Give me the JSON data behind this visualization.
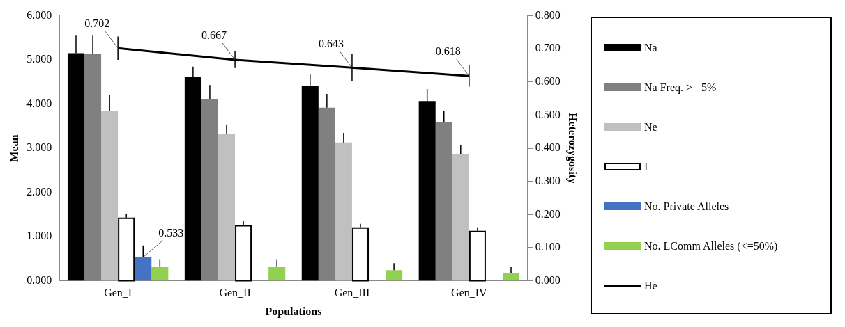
{
  "chart_data": {
    "type": "bar",
    "xlabel": "Populations",
    "ylabel": "Mean",
    "y2label": "Heterozygosity",
    "categories": [
      "Gen_I",
      "Gen_II",
      "Gen_III",
      "Gen_IV"
    ],
    "ylim": [
      0,
      6
    ],
    "yticks": [
      {
        "value": 0,
        "label": "0.000"
      },
      {
        "value": 1,
        "label": "1.000"
      },
      {
        "value": 2,
        "label": "2.000"
      },
      {
        "value": 3,
        "label": "3.000"
      },
      {
        "value": 4,
        "label": "4.000"
      },
      {
        "value": 5,
        "label": "5.000"
      },
      {
        "value": 6,
        "label": "6.000"
      }
    ],
    "y2lim": [
      0,
      0.8
    ],
    "y2ticks": [
      {
        "value": 0,
        "label": "0.000"
      },
      {
        "value": 0.1,
        "label": "0.100"
      },
      {
        "value": 0.2,
        "label": "0.200"
      },
      {
        "value": 0.3,
        "label": "0.300"
      },
      {
        "value": 0.4,
        "label": "0.400"
      },
      {
        "value": 0.5,
        "label": "0.500"
      },
      {
        "value": 0.6,
        "label": "0.600"
      },
      {
        "value": 0.7,
        "label": "0.700"
      },
      {
        "value": 0.8,
        "label": "0.800"
      }
    ],
    "grid": false,
    "legend": "right",
    "series": [
      {
        "name": "Na",
        "color": "#000000",
        "values": [
          5.15,
          4.61,
          4.41,
          4.07
        ],
        "errors": [
          [
            5.15,
            5.55
          ],
          [
            4.61,
            4.85
          ],
          [
            4.41,
            4.67
          ],
          [
            4.07,
            4.34
          ]
        ]
      },
      {
        "name": "Na Freq. >= 5%",
        "color": "#808080",
        "values": [
          5.14,
          4.11,
          3.92,
          3.6
        ],
        "errors": [
          [
            5.14,
            5.55
          ],
          [
            4.11,
            4.43
          ],
          [
            3.92,
            4.23
          ],
          [
            3.6,
            3.84
          ]
        ]
      },
      {
        "name": "Ne",
        "color": "#c0c0c0",
        "values": [
          3.85,
          3.32,
          3.13,
          2.86
        ],
        "errors": [
          [
            3.85,
            4.2
          ],
          [
            3.32,
            3.54
          ],
          [
            3.13,
            3.35
          ],
          [
            2.86,
            3.07
          ]
        ]
      },
      {
        "name": "I",
        "color": "#ffffff",
        "values": [
          1.43,
          1.26,
          1.21,
          1.13
        ],
        "errors": [
          [
            1.43,
            1.51
          ],
          [
            1.26,
            1.36
          ],
          [
            1.21,
            1.29
          ],
          [
            1.13,
            1.21
          ]
        ]
      },
      {
        "name": "No. Private Alleles",
        "color": "#4472c4",
        "values": [
          0.533,
          0,
          0,
          0
        ],
        "errors": [
          [
            0.533,
            0.8
          ],
          null,
          null,
          null
        ],
        "value_labels": [
          "0.533",
          null,
          null,
          null
        ]
      },
      {
        "name": "No. LComm Alleles (<=50%)",
        "color": "#92d050",
        "values": [
          0.31,
          0.31,
          0.24,
          0.17
        ],
        "errors": [
          [
            0.31,
            0.49
          ],
          [
            0.31,
            0.49
          ],
          [
            0.24,
            0.4
          ],
          [
            0.17,
            0.31
          ]
        ]
      },
      {
        "name": "He",
        "type": "line",
        "axis": "y2",
        "color": "#000000",
        "values": [
          0.702,
          0.667,
          0.643,
          0.618
        ],
        "errors": [
          0.035,
          0.025,
          0.041,
          0.032
        ],
        "value_labels": [
          "0.702",
          "0.667",
          "0.643",
          "0.618"
        ]
      }
    ]
  }
}
